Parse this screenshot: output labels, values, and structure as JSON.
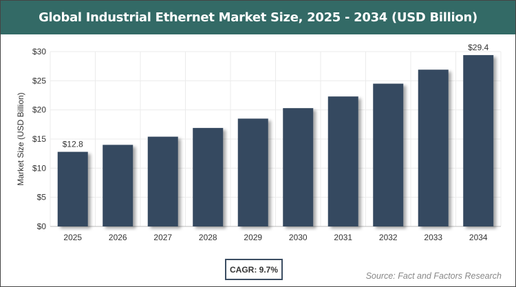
{
  "chart_data": {
    "type": "bar",
    "title": "Global Industrial Ethernet Market Size, 2025 - 2034 (USD Billion)",
    "xlabel": "",
    "ylabel": "Market Size (USD Billion)",
    "categories": [
      "2025",
      "2026",
      "2027",
      "2028",
      "2029",
      "2030",
      "2031",
      "2032",
      "2033",
      "2034"
    ],
    "values": [
      12.8,
      14.0,
      15.4,
      16.9,
      18.5,
      20.3,
      22.3,
      24.5,
      26.9,
      29.4
    ],
    "data_labels": {
      "0": "$12.8",
      "9": "$29.4"
    },
    "ylim": [
      0,
      30
    ],
    "yticks": [
      "$0",
      "$5",
      "$10",
      "$15",
      "$20",
      "$25",
      "$30"
    ],
    "grid": true,
    "bar_color": "#364a60"
  },
  "title_bar_color": "#336a66",
  "cagr": "CAGR: 9.7%",
  "source": "Source: Fact and Factors Research"
}
